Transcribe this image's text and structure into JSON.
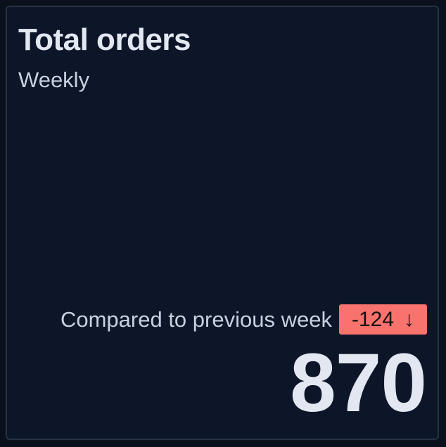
{
  "card": {
    "title": "Total orders",
    "subtitle": "Weekly",
    "comparison_label": "Compared to previous week",
    "delta": "-124",
    "delta_icon": "arrow-down-icon",
    "delta_glyph": "↓",
    "value": "870",
    "colors": {
      "negative_badge": "#f8736d",
      "background": "#0c1628",
      "text": "#e3e7f1"
    }
  }
}
